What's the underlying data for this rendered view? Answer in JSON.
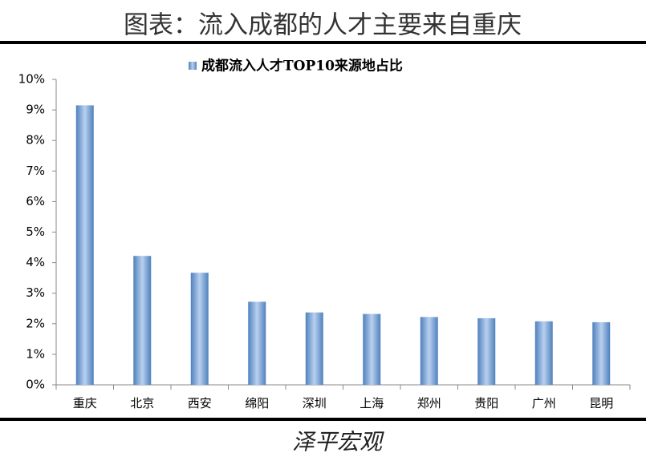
{
  "header": {
    "title": "图表：流入成都的人才主要来自重庆"
  },
  "chart_data": {
    "type": "bar",
    "categories": [
      "重庆",
      "北京",
      "西安",
      "绵阳",
      "深圳",
      "上海",
      "郑州",
      "贵阳",
      "广州",
      "昆明"
    ],
    "series": [
      {
        "name": "成都流入人才TOP10来源地占比",
        "color": "#4f81bd",
        "values": [
          9.15,
          4.22,
          3.67,
          2.72,
          2.37,
          2.32,
          2.22,
          2.18,
          2.08,
          2.05
        ]
      }
    ],
    "ylim": [
      0,
      10
    ],
    "yticks": [
      {
        "value": 0,
        "label": "0%"
      },
      {
        "value": 1,
        "label": "1%"
      },
      {
        "value": 2,
        "label": "2%"
      },
      {
        "value": 3,
        "label": "3%"
      },
      {
        "value": 4,
        "label": "4%"
      },
      {
        "value": 5,
        "label": "5%"
      },
      {
        "value": 6,
        "label": "6%"
      },
      {
        "value": 7,
        "label": "7%"
      },
      {
        "value": 8,
        "label": "8%"
      },
      {
        "value": 9,
        "label": "9%"
      },
      {
        "value": 10,
        "label": "10%"
      }
    ],
    "legend": "top"
  },
  "footer": {
    "text": "泽平宏观"
  }
}
